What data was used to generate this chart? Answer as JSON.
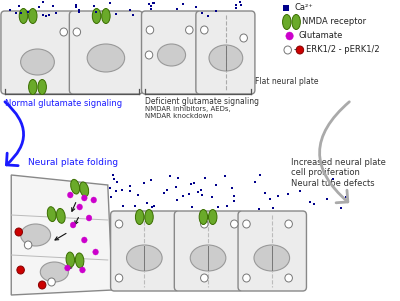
{
  "bg_color": "#ffffff",
  "legend": {
    "ca_color": "#00008B",
    "nmda_color": "#6aaa2a",
    "nmda_edge": "#3a6e00",
    "glut_color": "#cc00cc",
    "erk_fill_color": "#cc0000",
    "ca_label": "Ca²⁺",
    "nmda_label": "NMDA receptor",
    "glut_label": "Glutamate",
    "erk_label": "ERK1/2 - pERK1/2"
  },
  "texts": {
    "flat_neural_plate": "Flat neural plate",
    "normal_sig": "Normal glutamate signaling",
    "deficient_sig": "Deficient glutamate signaling",
    "nmdar_text": "NMDAR inhibitors, AEDs,\nNMDAR knockdown",
    "folding": "Neural plate folding",
    "increased": "Increased neural plate\ncell proliferation\nNeural tube defects"
  },
  "cell_color": "#ececec",
  "cell_border": "#888888",
  "nucleus_color": "#cccccc",
  "nucleus_border": "#999999",
  "blue_arrow_color": "#1a1aff",
  "gray_arrow_color": "#aaaaaa"
}
